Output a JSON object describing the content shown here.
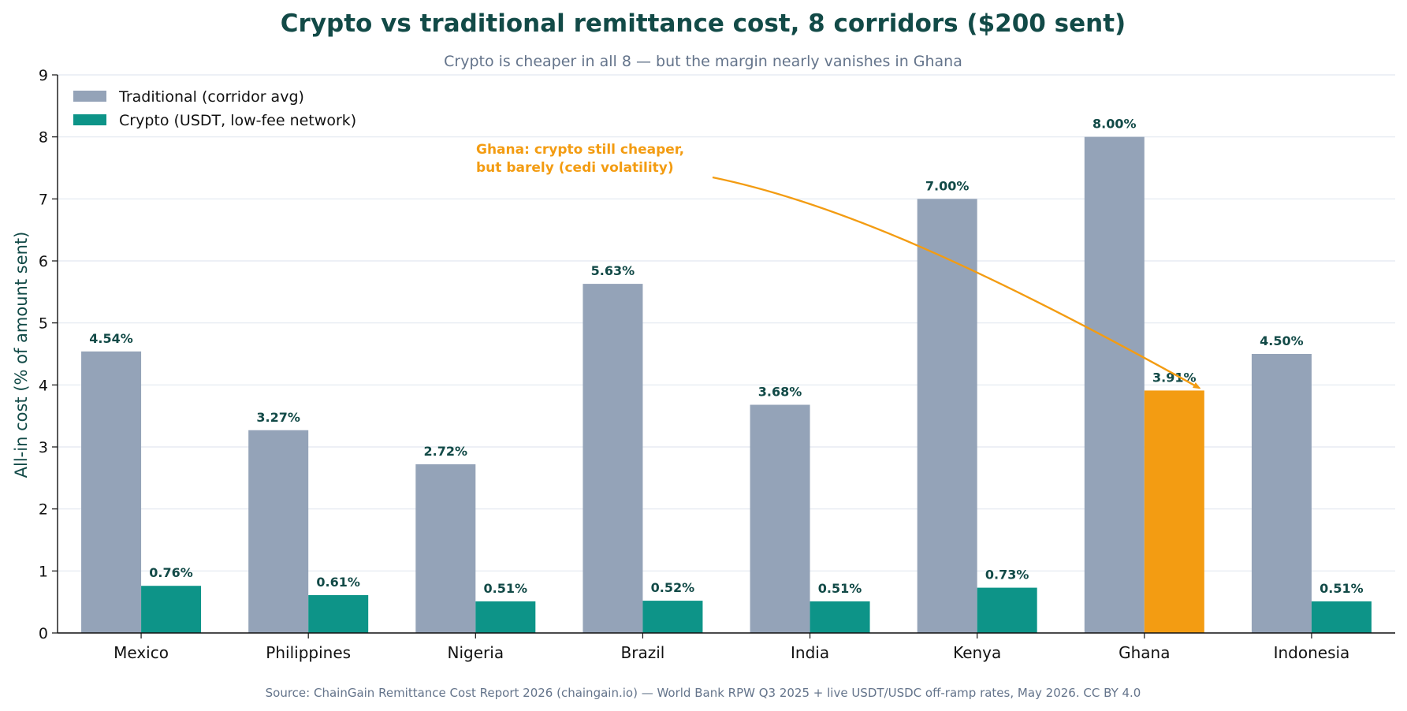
{
  "chart_data": {
    "type": "bar",
    "title": "Crypto vs traditional remittance cost, 8 corridors ($200 sent)",
    "subtitle": "Crypto is cheaper in all 8 — but the margin nearly vanishes in Ghana",
    "xlabel": "",
    "ylabel": "All-in cost (% of amount sent)",
    "ylim": [
      0,
      9
    ],
    "yticks": [
      0,
      1,
      2,
      3,
      4,
      5,
      6,
      7,
      8,
      9
    ],
    "grid": true,
    "legend_placement": "top-left",
    "categories": [
      "Mexico",
      "Philippines",
      "Nigeria",
      "Brazil",
      "India",
      "Kenya",
      "Ghana",
      "Indonesia"
    ],
    "series": [
      {
        "name": "Traditional (corridor avg)",
        "color": "#94a3b8",
        "values": [
          4.54,
          3.27,
          2.72,
          5.63,
          3.68,
          7.0,
          8.0,
          4.5
        ],
        "labels": [
          "4.54%",
          "3.27%",
          "2.72%",
          "5.63%",
          "3.68%",
          "7.00%",
          "8.00%",
          "4.50%"
        ]
      },
      {
        "name": "Crypto (USDT, low-fee network)",
        "color": "#0d9488",
        "highlight_color": "#f39c12",
        "highlight_index": 6,
        "values": [
          0.76,
          0.61,
          0.51,
          0.52,
          0.51,
          0.73,
          3.91,
          0.51
        ],
        "labels": [
          "0.76%",
          "0.61%",
          "0.51%",
          "0.52%",
          "0.51%",
          "0.73%",
          "3.91%",
          "0.51%"
        ]
      }
    ],
    "annotation": {
      "lines": [
        "Ghana: crypto still cheaper,",
        "but barely (cedi volatility)"
      ],
      "color": "#f39c12",
      "target_category": "Ghana",
      "target_series": 1
    },
    "source": "Source: ChainGain Remittance Cost Report 2026 (chaingain.io) — World Bank RPW Q3 2025 + live USDT/USDC off-ramp rates, May 2026. CC BY 4.0"
  }
}
